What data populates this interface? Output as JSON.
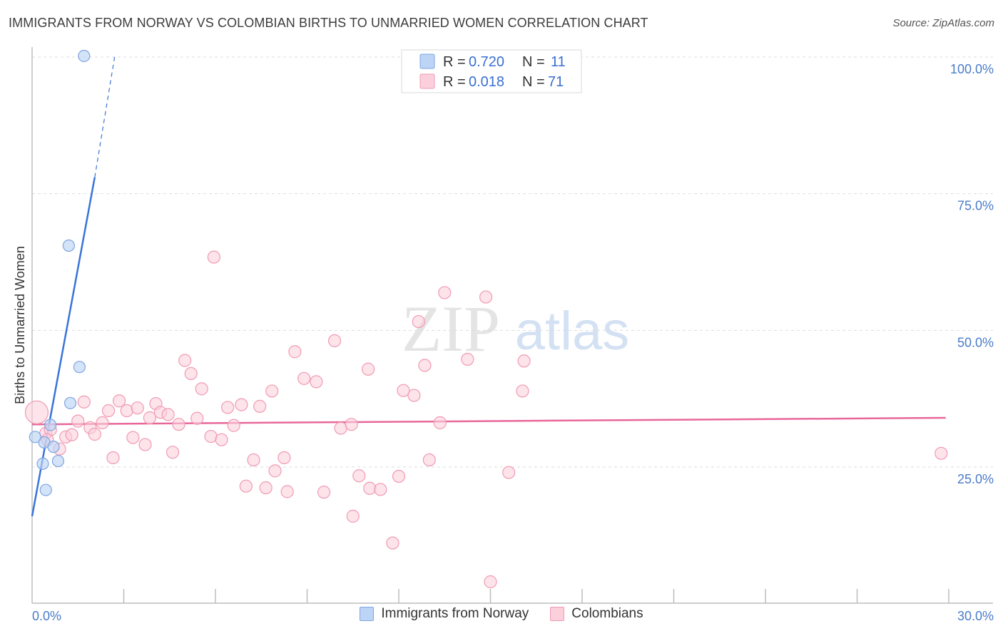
{
  "header": {
    "title": "IMMIGRANTS FROM NORWAY VS COLOMBIAN BIRTHS TO UNMARRIED WOMEN CORRELATION CHART",
    "source": "Source: ZipAtlas.com"
  },
  "watermark": {
    "zip": "ZIP",
    "atlas": "atlas"
  },
  "colors": {
    "blue": "#3a74d8",
    "blue_fill": "#bcd4f5",
    "blue_stroke": "#7fa5e0",
    "pink": "#e8679a",
    "pink_fill": "#fbd0dc",
    "pink_stroke": "#f09ab3",
    "grid": "#dddddd"
  },
  "legend_box": {
    "rows": [
      {
        "r_label": "R = ",
        "r_value": "0.720",
        "n_label": "N = ",
        "n_value": "11"
      },
      {
        "r_label": "R = ",
        "r_value": "0.018",
        "n_label": "N = ",
        "n_value": "71"
      }
    ]
  },
  "bottom_legend": {
    "items": [
      {
        "label": "Immigrants from Norway"
      },
      {
        "label": "Colombians"
      }
    ]
  },
  "chart_data": {
    "type": "scatter",
    "title": "IMMIGRANTS FROM NORWAY VS COLOMBIAN BIRTHS TO UNMARRIED WOMEN CORRELATION CHART",
    "xlabel": "",
    "ylabel": "Births to Unmarried Women",
    "xlim": [
      0,
      30
    ],
    "ylim": [
      2,
      102
    ],
    "x_tick_labels": [
      "0.0%",
      "30.0%"
    ],
    "y_ticks": [
      25,
      50,
      75,
      100
    ],
    "y_tick_labels": [
      "25.0%",
      "50.0%",
      "75.0%",
      "100.0%"
    ],
    "series": [
      {
        "name": "Immigrants from Norway",
        "color": "#3a74d8",
        "r": 0.72,
        "n": 11,
        "points": [
          [
            1.7,
            100.2
          ],
          [
            1.2,
            65.5
          ],
          [
            1.55,
            43.3
          ],
          [
            1.25,
            36.7
          ],
          [
            0.6,
            32.7
          ],
          [
            0.4,
            29.5
          ],
          [
            0.7,
            28.7
          ],
          [
            0.85,
            26.1
          ],
          [
            0.35,
            25.6
          ],
          [
            0.45,
            20.8
          ],
          [
            0.1,
            30.5
          ]
        ],
        "trend": {
          "x0": 0.0,
          "y0": 16.0,
          "x1": 2.05,
          "y1": 78.0,
          "dash_x1": 2.7,
          "dash_y1": 100.0
        }
      },
      {
        "name": "Colombians",
        "color": "#e8679a",
        "r": 0.018,
        "n": 71,
        "points": [
          [
            0.15,
            35.0
          ],
          [
            0.45,
            31.2
          ],
          [
            0.6,
            31.8
          ],
          [
            0.9,
            28.3
          ],
          [
            1.1,
            30.5
          ],
          [
            1.3,
            30.9
          ],
          [
            1.7,
            36.9
          ],
          [
            1.5,
            33.4
          ],
          [
            1.9,
            32.2
          ],
          [
            2.05,
            31.0
          ],
          [
            2.3,
            33.1
          ],
          [
            2.5,
            35.3
          ],
          [
            2.65,
            26.7
          ],
          [
            2.85,
            37.1
          ],
          [
            3.1,
            35.3
          ],
          [
            3.3,
            30.4
          ],
          [
            3.45,
            35.8
          ],
          [
            3.7,
            29.1
          ],
          [
            3.85,
            34.0
          ],
          [
            4.05,
            36.6
          ],
          [
            4.2,
            35.0
          ],
          [
            4.45,
            34.6
          ],
          [
            4.6,
            27.7
          ],
          [
            4.8,
            32.8
          ],
          [
            5.0,
            44.5
          ],
          [
            5.2,
            42.1
          ],
          [
            5.4,
            33.9
          ],
          [
            5.55,
            39.3
          ],
          [
            5.85,
            30.6
          ],
          [
            5.95,
            63.4
          ],
          [
            6.2,
            30.0
          ],
          [
            6.4,
            35.9
          ],
          [
            6.6,
            32.6
          ],
          [
            6.85,
            36.4
          ],
          [
            7.0,
            21.5
          ],
          [
            7.25,
            26.3
          ],
          [
            7.45,
            36.1
          ],
          [
            7.65,
            21.2
          ],
          [
            7.85,
            38.9
          ],
          [
            7.95,
            24.3
          ],
          [
            8.25,
            26.7
          ],
          [
            8.35,
            20.5
          ],
          [
            8.6,
            46.1
          ],
          [
            8.9,
            41.2
          ],
          [
            9.3,
            40.6
          ],
          [
            9.55,
            20.4
          ],
          [
            9.9,
            48.1
          ],
          [
            10.1,
            32.1
          ],
          [
            10.45,
            32.8
          ],
          [
            10.5,
            16.0
          ],
          [
            10.7,
            23.4
          ],
          [
            11.0,
            42.9
          ],
          [
            11.05,
            21.1
          ],
          [
            11.4,
            20.9
          ],
          [
            11.8,
            11.1
          ],
          [
            12.0,
            23.3
          ],
          [
            12.15,
            39.0
          ],
          [
            12.5,
            38.1
          ],
          [
            12.85,
            43.6
          ],
          [
            12.65,
            51.6
          ],
          [
            13.0,
            26.3
          ],
          [
            13.35,
            33.1
          ],
          [
            13.5,
            56.9
          ],
          [
            14.25,
            44.7
          ],
          [
            14.85,
            56.1
          ],
          [
            15.0,
            4.0
          ],
          [
            15.6,
            24.0
          ],
          [
            16.1,
            44.4
          ],
          [
            16.05,
            38.9
          ],
          [
            29.75,
            27.5
          ],
          [
            0.5,
            30.0
          ]
        ],
        "trend": {
          "x0": 0.0,
          "y0": 32.8,
          "x1": 29.9,
          "y1": 34.0
        }
      }
    ]
  }
}
